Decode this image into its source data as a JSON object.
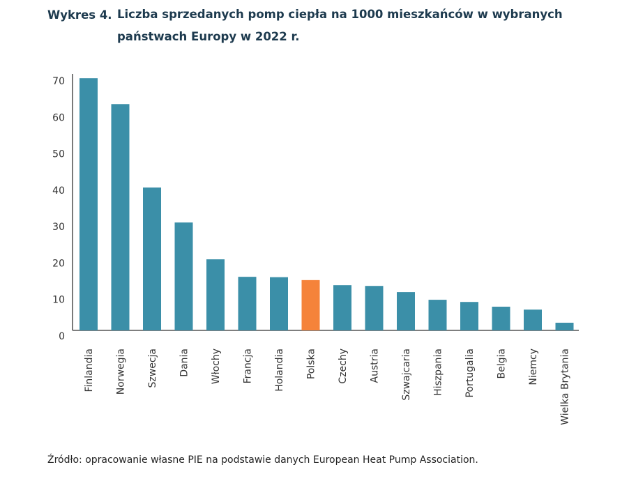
{
  "title": {
    "label": "Wykres 4.",
    "text": "Liczba sprzedanych pomp ciepła na 1000 mieszkańców w wybranych państwach Europy w 2022 r."
  },
  "source": "Źródło: opracowanie własne PIE na podstawie danych European Heat Pump Association.",
  "chart_data": {
    "type": "bar",
    "title": "Liczba sprzedanych pomp ciepła na 1000 mieszkańców w wybranych państwach Europy w 2022 r.",
    "categories": [
      "Finlandia",
      "Norwegia",
      "Szwecja",
      "Dania",
      "Włochy",
      "Francja",
      "Holandia",
      "Polska",
      "Czechy",
      "Austria",
      "Szwajcaria",
      "Hiszpania",
      "Portugalia",
      "Belgia",
      "Niemcy",
      "Wielka Brytania"
    ],
    "values": [
      69.2,
      62.1,
      39.2,
      29.6,
      19.5,
      14.7,
      14.6,
      13.8,
      12.4,
      12.2,
      10.5,
      8.4,
      7.8,
      6.5,
      5.7,
      2.1
    ],
    "ylim": [
      0,
      70
    ],
    "yticks": [
      0,
      10,
      20,
      30,
      40,
      50,
      60,
      70
    ],
    "grid": false,
    "colors": {
      "default": "#3b8fa8",
      "highlight": "#f5833a"
    },
    "highlight": "Polska"
  }
}
